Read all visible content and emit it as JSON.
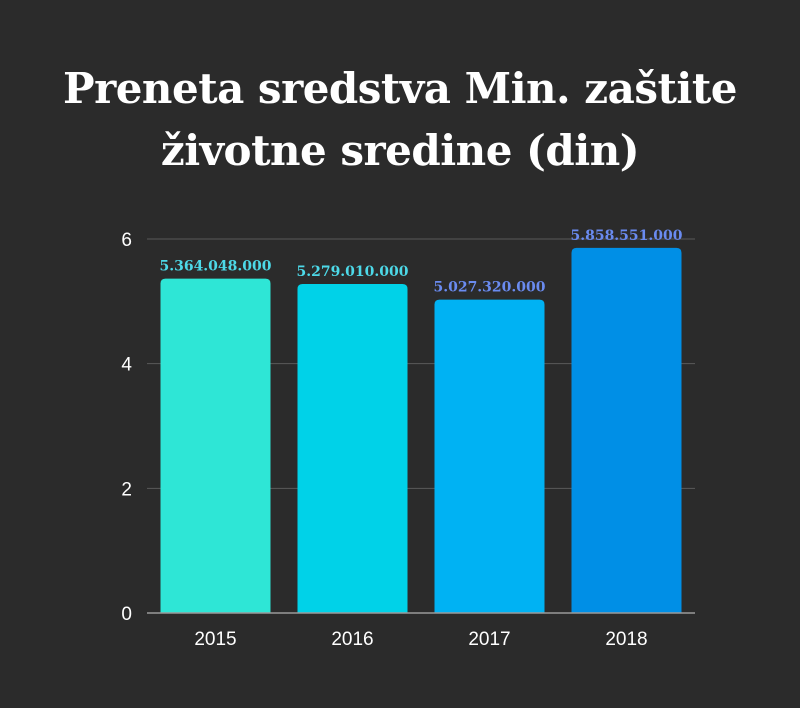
{
  "title_lines": [
    "Preneta sredstva Min. zaštite",
    "životne sredine (din)"
  ],
  "chart_data": {
    "type": "bar",
    "title": "Preneta sredstva Min. zaštite životne sredine (din)",
    "categories": [
      "2015",
      "2016",
      "2017",
      "2018"
    ],
    "values": [
      5.364048,
      5.27901,
      5.02732,
      5.858551
    ],
    "data_labels": [
      "5.364.048.000",
      "5.279.010.000",
      "5.027.320.000",
      "5.858.551.000"
    ],
    "yticks": [
      "0",
      "2",
      "4",
      "6"
    ],
    "ylim": [
      0,
      6
    ],
    "grid": true,
    "xlabel": "",
    "ylabel": ""
  },
  "colors": {
    "background": "#2b2b2b",
    "grid": "#5a5a5a",
    "axis": "#9a9a9a",
    "bars": [
      "#2ee6d6",
      "#00d2e8",
      "#00b2f3",
      "#008fe6"
    ],
    "labels": [
      "#4dd9e8",
      "#4dd9e8",
      "#6a8bf0",
      "#6a8bf0"
    ]
  }
}
